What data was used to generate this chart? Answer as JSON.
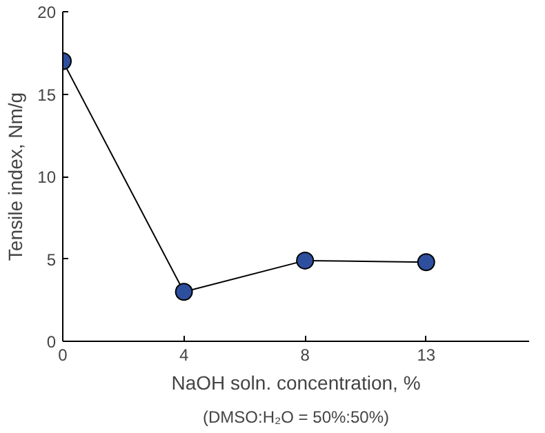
{
  "chart_data": {
    "type": "line",
    "xlabel": "NaOH soln. concentration, %",
    "ylabel": "Tensile index, Nm/g",
    "annotations": [
      "(DMSO:H₂O = 50%:50%)"
    ],
    "categories": [
      "0",
      "4",
      "8",
      "13"
    ],
    "series": [
      {
        "color": "#2e4f9e",
        "values": [
          17.0,
          3.0,
          4.9,
          4.8
        ]
      }
    ],
    "ylim": [
      0,
      20
    ],
    "yticks": [
      0,
      5,
      10,
      15,
      20
    ],
    "grid": false,
    "marker": "circle",
    "line_style": "solid"
  }
}
